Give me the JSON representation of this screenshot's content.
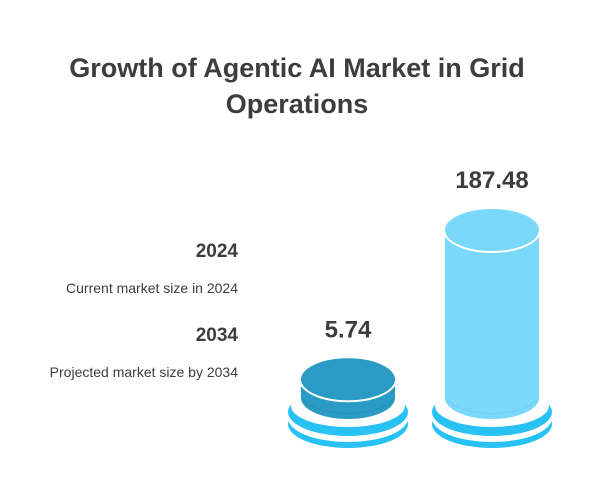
{
  "chart_data": {
    "type": "bar",
    "title": "Growth of Agentic AI Market in Grid Operations",
    "categories": [
      "2024",
      "2034"
    ],
    "descriptions": [
      "Current market size in 2024",
      "Projected market size by 2034"
    ],
    "values": [
      5.74,
      187.48
    ],
    "value_labels": [
      "5.74",
      "187.48"
    ],
    "colors": {
      "bar_2024": "#2a9bc4",
      "bar_2034": "#7ad9fb",
      "base": "#27c2f3",
      "text": "#3d3d3d"
    },
    "legend_position": "left",
    "grid": false
  }
}
